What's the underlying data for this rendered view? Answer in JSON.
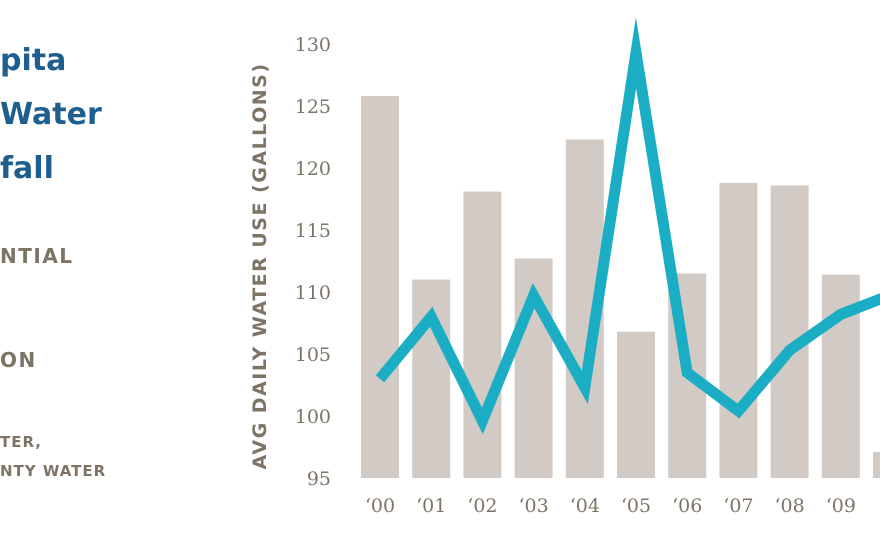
{
  "header": {
    "title_lines": [
      "pita",
      "Water",
      "fall"
    ]
  },
  "legend": {
    "bars_label": "NTIAL",
    "line_label": "ON"
  },
  "source": {
    "lines": [
      "TER,",
      "NTY WATER"
    ]
  },
  "colors": {
    "bar": "#d2cbc5",
    "line": "#1aadc4",
    "title": "#1f5f8f",
    "axis_text": "#7d7466"
  },
  "chart_data": {
    "type": "bar",
    "categories": [
      "‘00",
      "‘01",
      "‘02",
      "‘03",
      "‘04",
      "‘05",
      "‘06",
      "‘07",
      "‘08",
      "‘09",
      "‘"
    ],
    "ylabel": "AVG DAILY WATER USE (GALLONS)",
    "ylim": [
      95,
      130
    ],
    "yticks": [
      95,
      100,
      105,
      110,
      115,
      120,
      125,
      130
    ],
    "grid": false,
    "series": [
      {
        "type": "bar",
        "values": [
          125.8,
          111.0,
          118.1,
          112.7,
          122.3,
          106.8,
          111.5,
          118.8,
          118.6,
          111.4,
          97.1
        ]
      },
      {
        "type": "line",
        "values": [
          103.0,
          108.0,
          99.6,
          109.7,
          102.3,
          129.3,
          103.5,
          100.4,
          105.3,
          108.2,
          109.8
        ]
      }
    ]
  }
}
